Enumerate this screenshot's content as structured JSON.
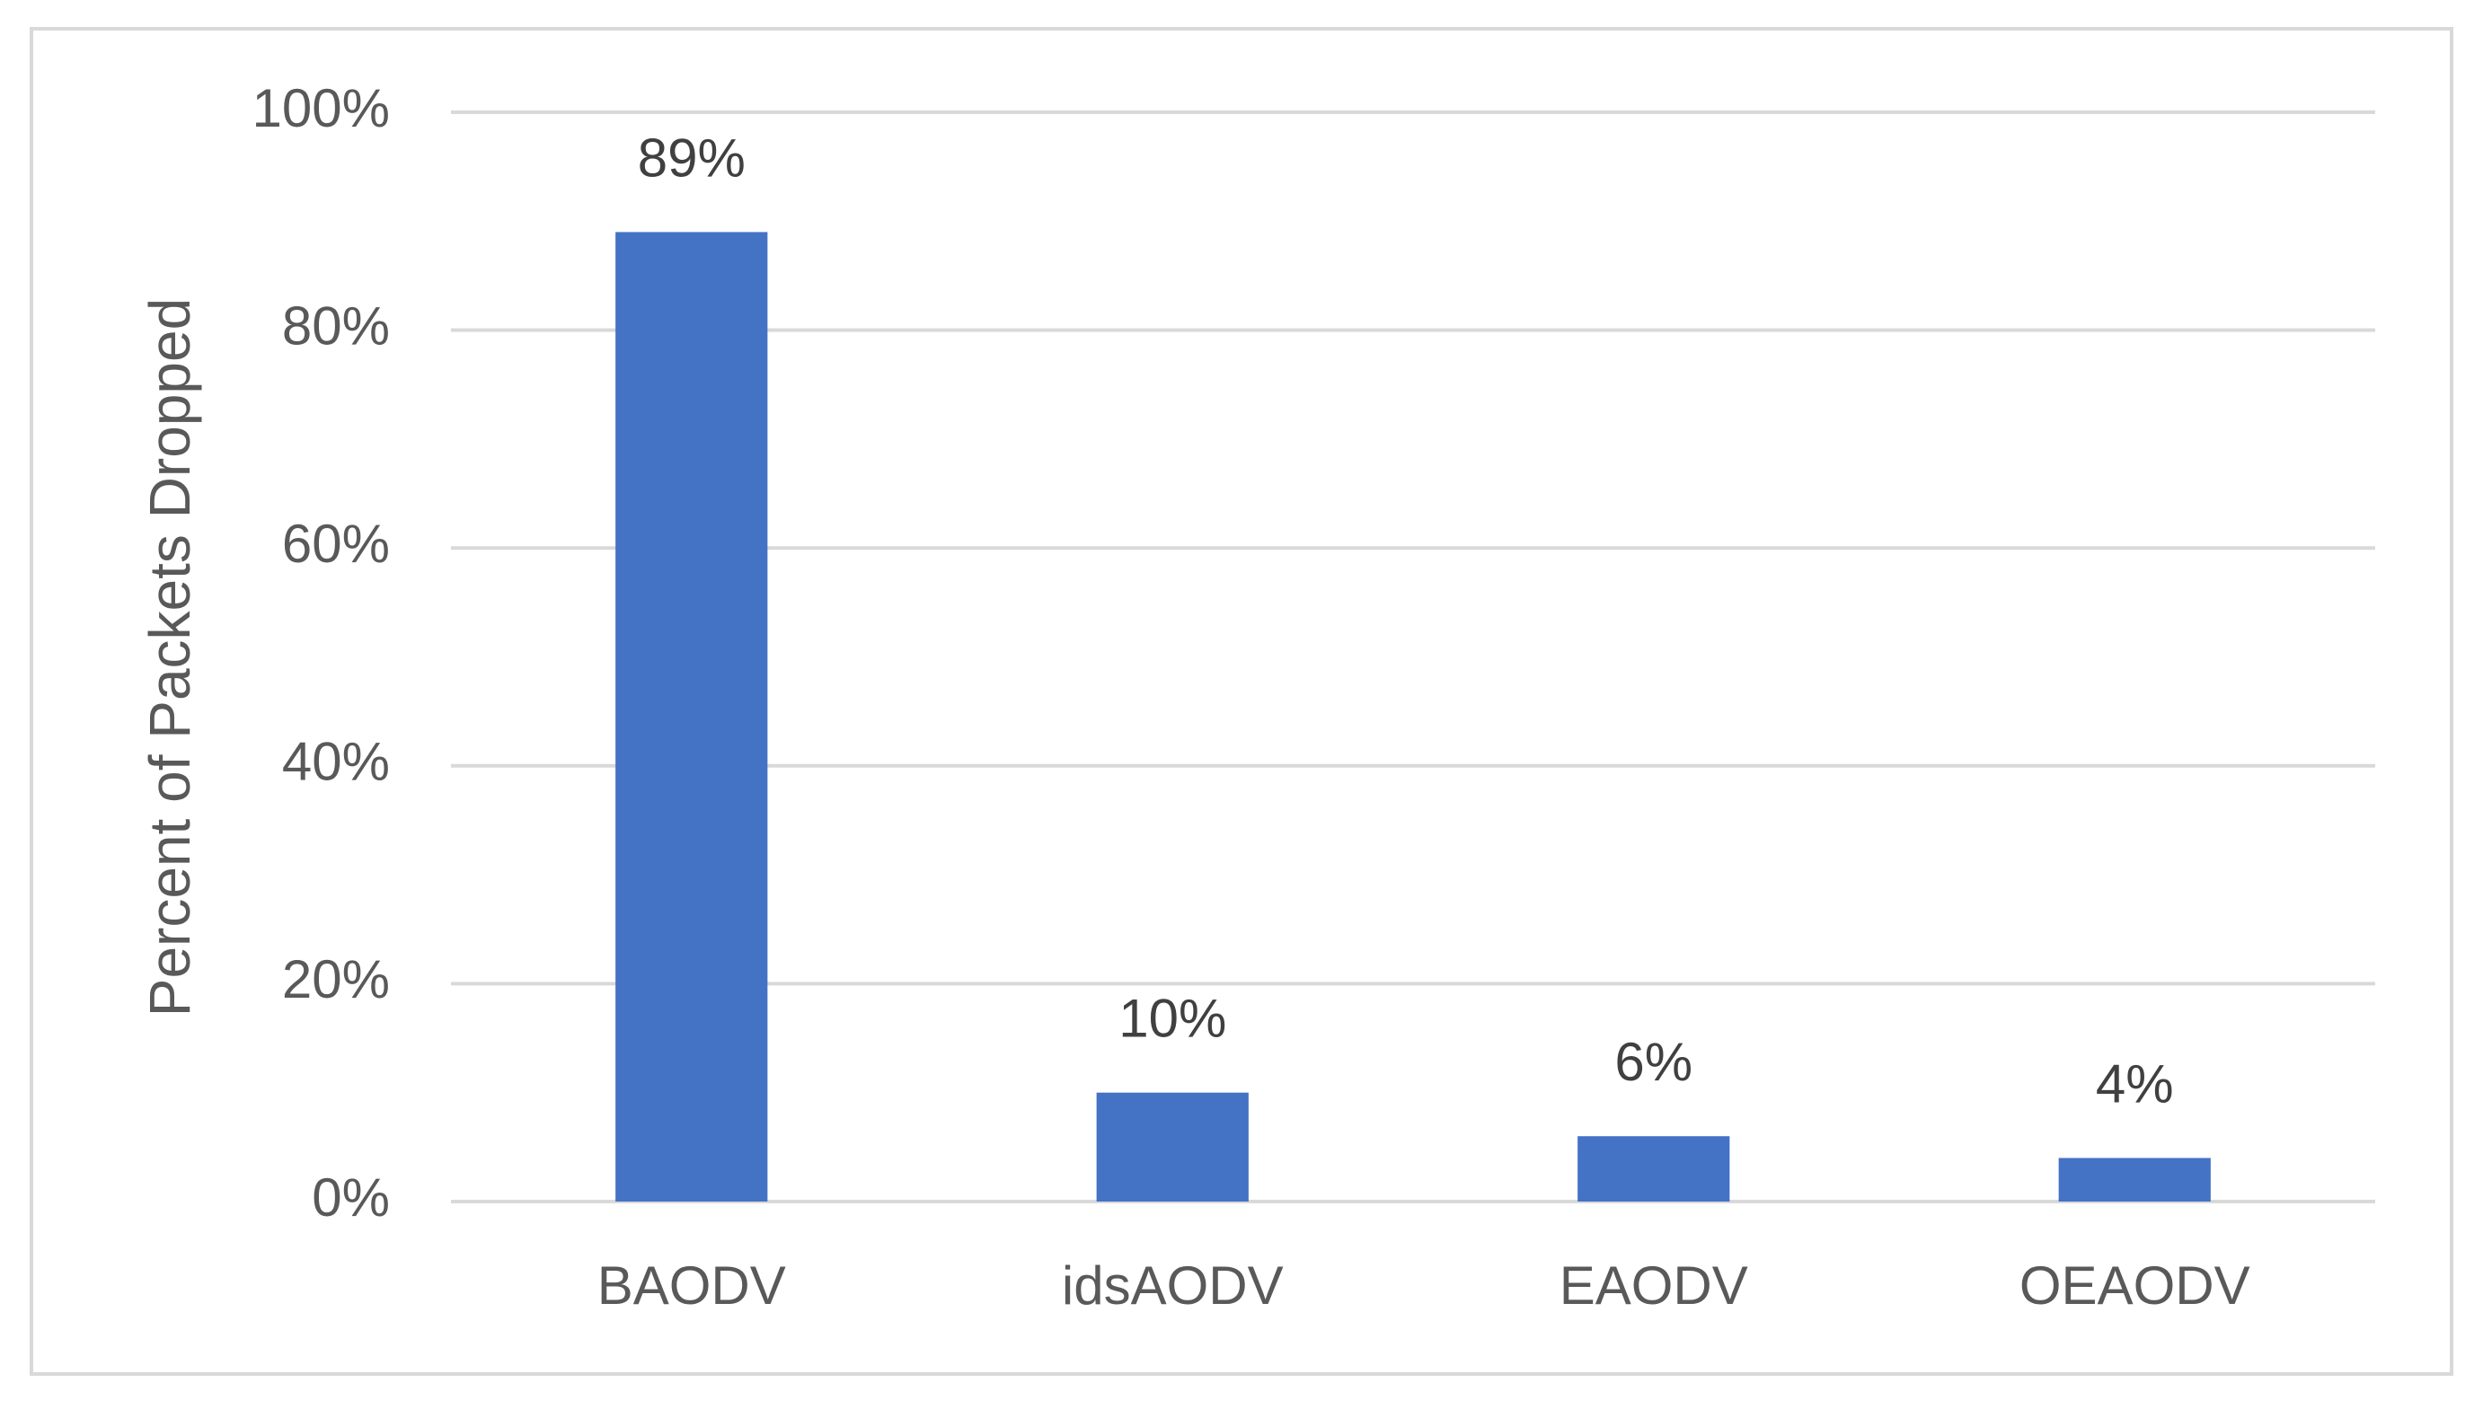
{
  "chart_data": {
    "type": "bar",
    "y_label": "Percent of Packets Dropped",
    "categories": [
      "BAODV",
      "idsAODV",
      "EAODV",
      "OEAODV"
    ],
    "values": [
      89,
      10,
      6,
      4
    ],
    "value_labels": [
      "89%",
      "10%",
      "6%",
      "4%"
    ],
    "color": "#4472c4",
    "ylim": [
      0,
      100
    ],
    "yticks": [
      {
        "value": 0,
        "label": "0%"
      },
      {
        "value": 20,
        "label": "20%"
      },
      {
        "value": 40,
        "label": "40%"
      },
      {
        "value": 60,
        "label": "60%"
      },
      {
        "value": 80,
        "label": "80%"
      },
      {
        "value": 100,
        "label": "100%"
      }
    ],
    "grid": true
  }
}
